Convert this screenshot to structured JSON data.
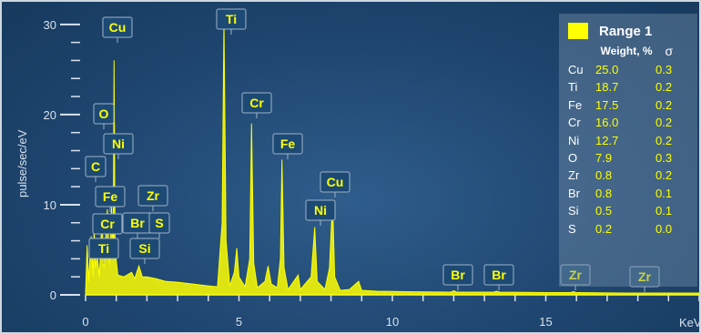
{
  "chart_data": {
    "type": "line",
    "title": "",
    "xlabel": "KeV",
    "ylabel": "pulse/sec/eV",
    "xlim": [
      0,
      20
    ],
    "ylim": [
      0,
      32
    ],
    "x_ticks": [
      "0",
      "5",
      "10",
      "15"
    ],
    "y_ticks": [
      "0",
      "10",
      "20",
      "30"
    ],
    "series": [
      {
        "color": "#ffff00",
        "points": [
          [
            0.0,
            0.2
          ],
          [
            0.05,
            5.5
          ],
          [
            0.1,
            1.5
          ],
          [
            0.18,
            6.5
          ],
          [
            0.25,
            2.0
          ],
          [
            0.28,
            7.5
          ],
          [
            0.32,
            3.0
          ],
          [
            0.38,
            4.5
          ],
          [
            0.45,
            2.0
          ],
          [
            0.53,
            8.5
          ],
          [
            0.6,
            3.0
          ],
          [
            0.71,
            9.5
          ],
          [
            0.78,
            3.5
          ],
          [
            0.85,
            9.8
          ],
          [
            0.9,
            4.5
          ],
          [
            0.93,
            26.0
          ],
          [
            0.96,
            5.0
          ],
          [
            1.05,
            2.2
          ],
          [
            1.25,
            2.0
          ],
          [
            1.5,
            2.5
          ],
          [
            1.6,
            1.8
          ],
          [
            1.74,
            3.2
          ],
          [
            1.85,
            2.0
          ],
          [
            2.0,
            2.0
          ],
          [
            2.3,
            1.8
          ],
          [
            2.6,
            1.5
          ],
          [
            3.0,
            1.4
          ],
          [
            3.5,
            1.2
          ],
          [
            4.0,
            1.0
          ],
          [
            4.3,
            0.9
          ],
          [
            4.45,
            8.0
          ],
          [
            4.51,
            30.5
          ],
          [
            4.58,
            6.0
          ],
          [
            4.7,
            1.0
          ],
          [
            4.85,
            2.5
          ],
          [
            4.93,
            5.2
          ],
          [
            5.0,
            2.0
          ],
          [
            5.2,
            0.9
          ],
          [
            5.35,
            4.0
          ],
          [
            5.41,
            19.0
          ],
          [
            5.48,
            3.5
          ],
          [
            5.6,
            0.8
          ],
          [
            5.85,
            1.5
          ],
          [
            5.95,
            3.2
          ],
          [
            6.05,
            1.2
          ],
          [
            6.25,
            0.8
          ],
          [
            6.35,
            4.0
          ],
          [
            6.4,
            15.0
          ],
          [
            6.47,
            3.0
          ],
          [
            6.6,
            0.6
          ],
          [
            6.93,
            2.2
          ],
          [
            7.0,
            0.6
          ],
          [
            7.35,
            2.0
          ],
          [
            7.47,
            7.5
          ],
          [
            7.55,
            1.5
          ],
          [
            7.8,
            0.6
          ],
          [
            7.95,
            3.0
          ],
          [
            8.05,
            10.5
          ],
          [
            8.12,
            2.0
          ],
          [
            8.3,
            0.5
          ],
          [
            8.6,
            0.6
          ],
          [
            8.9,
            1.5
          ],
          [
            9.0,
            0.5
          ],
          [
            9.5,
            0.4
          ],
          [
            10.5,
            0.35
          ],
          [
            11.9,
            0.3
          ],
          [
            12.0,
            0.45
          ],
          [
            12.1,
            0.3
          ],
          [
            13.3,
            0.3
          ],
          [
            13.4,
            0.4
          ],
          [
            13.5,
            0.3
          ],
          [
            15.0,
            0.25
          ],
          [
            15.8,
            0.25
          ],
          [
            15.9,
            0.35
          ],
          [
            16.0,
            0.25
          ],
          [
            17.5,
            0.2
          ],
          [
            19.0,
            0.2
          ],
          [
            20.0,
            0.2
          ]
        ]
      }
    ],
    "peak_labels": [
      {
        "text": "Cu",
        "energy": 0.93
      },
      {
        "text": "Ti",
        "energy": 4.51
      },
      {
        "text": "Cr",
        "energy": 5.41
      },
      {
        "text": "Fe",
        "energy": 6.4
      },
      {
        "text": "Cu",
        "energy": 8.05
      },
      {
        "text": "Ni",
        "energy": 7.47
      },
      {
        "text": "O",
        "energy": 0.53
      },
      {
        "text": "Ni",
        "energy": 0.85
      },
      {
        "text": "C",
        "energy": 0.28
      },
      {
        "text": "Fe",
        "energy": 0.71
      },
      {
        "text": "Cr",
        "energy": 0.57
      },
      {
        "text": "Ti",
        "energy": 0.45
      },
      {
        "text": "Zr",
        "energy": 2.04
      },
      {
        "text": "Br",
        "energy": 1.48
      },
      {
        "text": "S",
        "energy": 2.31
      },
      {
        "text": "Si",
        "energy": 1.74
      },
      {
        "text": "Br",
        "energy": 11.92
      },
      {
        "text": "Br",
        "energy": 13.29
      },
      {
        "text": "Zr",
        "energy": 15.77
      },
      {
        "text": "Zr",
        "energy": 17.67
      }
    ],
    "legend": {
      "title": "Range 1",
      "col_weight": "Weight, %",
      "col_sigma": "σ",
      "rows": [
        {
          "el": "Cu",
          "weight": "25.0",
          "sigma": "0.3"
        },
        {
          "el": "Ti",
          "weight": "18.7",
          "sigma": "0.2"
        },
        {
          "el": "Fe",
          "weight": "17.5",
          "sigma": "0.2"
        },
        {
          "el": "Cr",
          "weight": "16.0",
          "sigma": "0.2"
        },
        {
          "el": "Ni",
          "weight": "12.7",
          "sigma": "0.2"
        },
        {
          "el": "O",
          "weight": "7.9",
          "sigma": "0.3"
        },
        {
          "el": "Zr",
          "weight": "0.8",
          "sigma": "0.2"
        },
        {
          "el": "Br",
          "weight": "0.8",
          "sigma": "0.1"
        },
        {
          "el": "Si",
          "weight": "0.5",
          "sigma": "0.1"
        },
        {
          "el": "S",
          "weight": "0.2",
          "sigma": "0.0"
        }
      ],
      "swatch_color": "#ffff00"
    }
  }
}
